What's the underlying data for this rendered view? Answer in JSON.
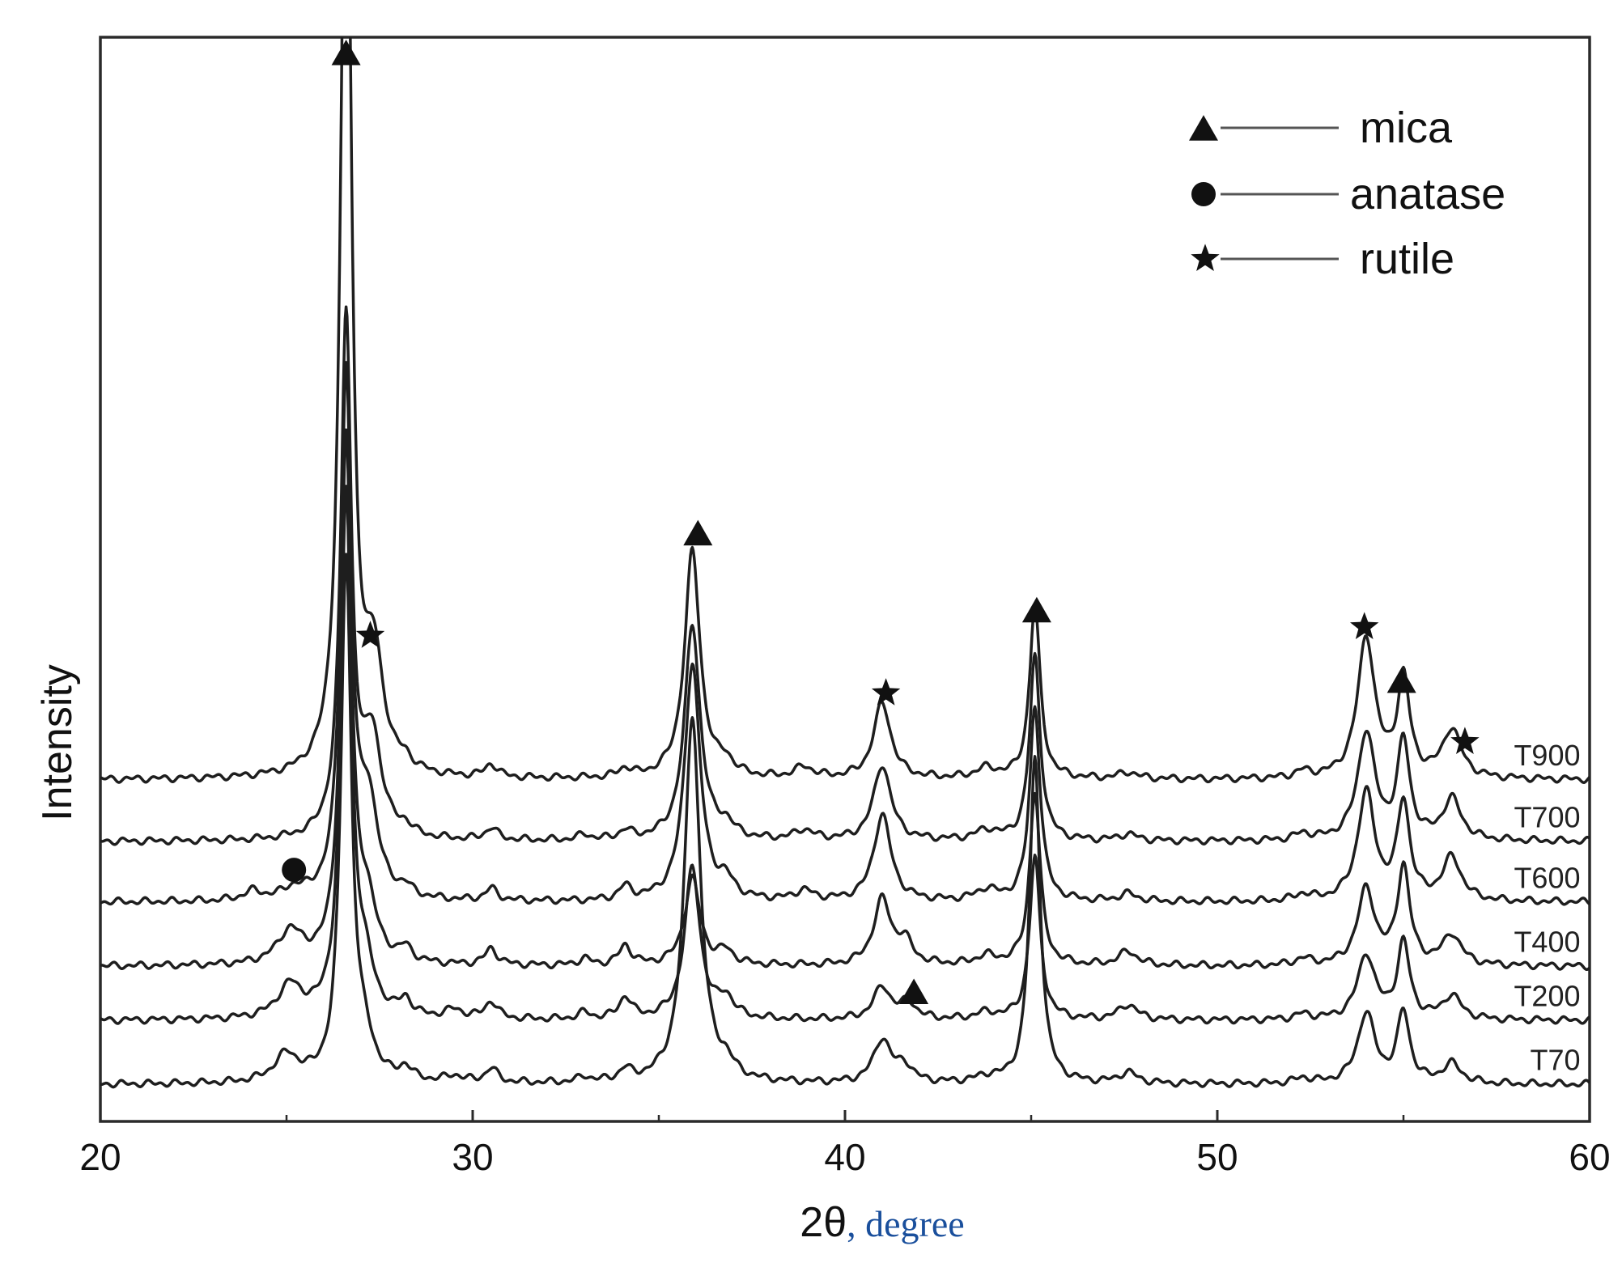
{
  "chart_data": {
    "type": "line",
    "title": "",
    "xlabel": "2θ",
    "xlabel_unit": ", degree",
    "ylabel": "Intensity",
    "xlim": [
      20,
      60
    ],
    "ylim": [
      0,
      100
    ],
    "xticks": [
      "20",
      "30",
      "40",
      "50",
      "60"
    ],
    "yticks": [],
    "grid": false,
    "legend_position": "top-right",
    "legend": [
      {
        "marker": "triangle",
        "label": "mica"
      },
      {
        "marker": "circle",
        "label": "anatase"
      },
      {
        "marker": "star",
        "label": "rutile"
      }
    ],
    "colors": {
      "line": "#1e1e1e",
      "axis": "#222222",
      "unit_text": "#1a4f9c",
      "t900_label": "#1a3a7a"
    },
    "series": [
      {
        "name": "T900",
        "baseline": 31.5,
        "noise": 0.35,
        "peaks": [
          [
            26.6,
            96,
            0.17
          ],
          [
            27.35,
            10,
            0.3
          ],
          [
            28.2,
            0.8,
            0.2
          ],
          [
            30.5,
            1.2,
            0.2
          ],
          [
            34.1,
            0.8,
            0.2
          ],
          [
            35.9,
            21,
            0.25
          ],
          [
            36.8,
            1.2,
            0.25
          ],
          [
            38.9,
            1,
            0.3
          ],
          [
            41.0,
            7,
            0.28
          ],
          [
            43.8,
            0.9,
            0.35
          ],
          [
            45.1,
            16,
            0.17
          ],
          [
            47.6,
            0.6,
            0.3
          ],
          [
            52.3,
            0.6,
            0.25
          ],
          [
            54.0,
            13,
            0.28
          ],
          [
            55.0,
            9,
            0.2
          ],
          [
            56.3,
            4.5,
            0.3
          ]
        ]
      },
      {
        "name": "T700",
        "baseline": 25.8,
        "noise": 0.35,
        "peaks": [
          [
            26.6,
            48,
            0.17
          ],
          [
            27.3,
            9,
            0.3
          ],
          [
            28.2,
            0.8,
            0.2
          ],
          [
            30.5,
            1.1,
            0.2
          ],
          [
            33.0,
            0.5,
            0.2
          ],
          [
            34.1,
            0.8,
            0.2
          ],
          [
            35.9,
            20,
            0.25
          ],
          [
            36.8,
            1.2,
            0.25
          ],
          [
            38.9,
            0.9,
            0.3
          ],
          [
            41.0,
            7,
            0.28
          ],
          [
            43.8,
            0.9,
            0.35
          ],
          [
            45.1,
            17,
            0.17
          ],
          [
            47.6,
            0.6,
            0.3
          ],
          [
            52.3,
            0.6,
            0.25
          ],
          [
            54.0,
            10,
            0.28
          ],
          [
            55.0,
            9,
            0.2
          ],
          [
            56.3,
            3.8,
            0.3
          ]
        ]
      },
      {
        "name": "T600",
        "baseline": 20.2,
        "noise": 0.35,
        "peaks": [
          [
            24.1,
            0.8,
            0.3
          ],
          [
            25.2,
            0.9,
            0.35
          ],
          [
            26.6,
            48,
            0.17
          ],
          [
            27.2,
            8.5,
            0.3
          ],
          [
            28.2,
            0.8,
            0.2
          ],
          [
            30.5,
            1.1,
            0.2
          ],
          [
            34.1,
            1.2,
            0.2
          ],
          [
            35.9,
            22,
            0.25
          ],
          [
            36.8,
            1.5,
            0.25
          ],
          [
            38.9,
            0.9,
            0.3
          ],
          [
            41.0,
            8,
            0.28
          ],
          [
            43.8,
            1,
            0.35
          ],
          [
            45.1,
            18,
            0.17
          ],
          [
            47.6,
            0.7,
            0.3
          ],
          [
            52.3,
            0.6,
            0.25
          ],
          [
            54.0,
            10,
            0.28
          ],
          [
            55.0,
            9,
            0.2
          ],
          [
            56.3,
            4,
            0.3
          ]
        ]
      },
      {
        "name": "T400",
        "baseline": 14.3,
        "noise": 0.35,
        "peaks": [
          [
            25.1,
            3,
            0.4
          ],
          [
            26.6,
            48,
            0.17
          ],
          [
            27.15,
            5,
            0.3
          ],
          [
            28.2,
            1.2,
            0.2
          ],
          [
            30.5,
            1.5,
            0.2
          ],
          [
            33.0,
            0.6,
            0.2
          ],
          [
            34.1,
            1.8,
            0.2
          ],
          [
            35.9,
            8,
            0.25
          ],
          [
            36.8,
            1.2,
            0.25
          ],
          [
            41.0,
            6,
            0.28
          ],
          [
            41.6,
            2,
            0.25
          ],
          [
            43.8,
            0.8,
            0.35
          ],
          [
            45.1,
            16,
            0.17
          ],
          [
            47.6,
            1.3,
            0.3
          ],
          [
            52.3,
            0.6,
            0.25
          ],
          [
            54.0,
            7,
            0.28
          ],
          [
            55.0,
            9,
            0.2
          ],
          [
            56.3,
            2.8,
            0.3
          ]
        ]
      },
      {
        "name": "T200",
        "baseline": 9.3,
        "noise": 0.35,
        "peaks": [
          [
            25.1,
            3,
            0.4
          ],
          [
            26.6,
            48,
            0.17
          ],
          [
            27.1,
            4,
            0.3
          ],
          [
            28.2,
            1.5,
            0.2
          ],
          [
            29.5,
            0.8,
            0.3
          ],
          [
            30.5,
            1.6,
            0.2
          ],
          [
            33.0,
            0.6,
            0.2
          ],
          [
            34.1,
            2,
            0.2
          ],
          [
            35.9,
            14,
            0.25
          ],
          [
            36.8,
            1.8,
            0.25
          ],
          [
            41.0,
            3,
            0.28
          ],
          [
            41.7,
            1.5,
            0.25
          ],
          [
            43.8,
            0.6,
            0.35
          ],
          [
            45.1,
            15,
            0.17
          ],
          [
            47.6,
            1.4,
            0.3
          ],
          [
            52.3,
            0.5,
            0.25
          ],
          [
            54.0,
            6,
            0.28
          ],
          [
            55.0,
            7,
            0.2
          ],
          [
            56.3,
            2.2,
            0.3
          ]
        ]
      },
      {
        "name": "T70",
        "baseline": 3.4,
        "noise": 0.35,
        "peaks": [
          [
            25.0,
            2.5,
            0.4
          ],
          [
            26.6,
            48,
            0.17
          ],
          [
            27.1,
            3,
            0.3
          ],
          [
            28.2,
            1.2,
            0.2
          ],
          [
            29.5,
            0.6,
            0.3
          ],
          [
            30.5,
            1.3,
            0.2
          ],
          [
            33.0,
            0.5,
            0.2
          ],
          [
            34.1,
            1,
            0.2
          ],
          [
            35.9,
            34,
            0.25
          ],
          [
            36.8,
            1.2,
            0.25
          ],
          [
            41.0,
            4,
            0.28
          ],
          [
            41.6,
            1.5,
            0.25
          ],
          [
            43.8,
            0.5,
            0.35
          ],
          [
            45.1,
            30,
            0.17
          ],
          [
            47.6,
            1,
            0.3
          ],
          [
            52.3,
            0.5,
            0.25
          ],
          [
            54.0,
            6.5,
            0.28
          ],
          [
            55.0,
            6.5,
            0.2
          ],
          [
            56.3,
            1.8,
            0.3
          ]
        ]
      }
    ],
    "markers": [
      {
        "type": "triangle",
        "x": 26.6,
        "y": 98.6
      },
      {
        "type": "star",
        "x": 27.25,
        "y": 44.8
      },
      {
        "type": "circle",
        "x": 25.2,
        "y": 23.2
      },
      {
        "type": "triangle",
        "x": 36.05,
        "y": 54.3
      },
      {
        "type": "star",
        "x": 41.1,
        "y": 39.5
      },
      {
        "type": "triangle",
        "x": 41.85,
        "y": 12.0
      },
      {
        "type": "triangle",
        "x": 45.15,
        "y": 47.2
      },
      {
        "type": "star",
        "x": 53.95,
        "y": 45.6
      },
      {
        "type": "triangle",
        "x": 54.95,
        "y": 40.7
      },
      {
        "type": "star",
        "x": 56.65,
        "y": 35.0
      }
    ]
  }
}
